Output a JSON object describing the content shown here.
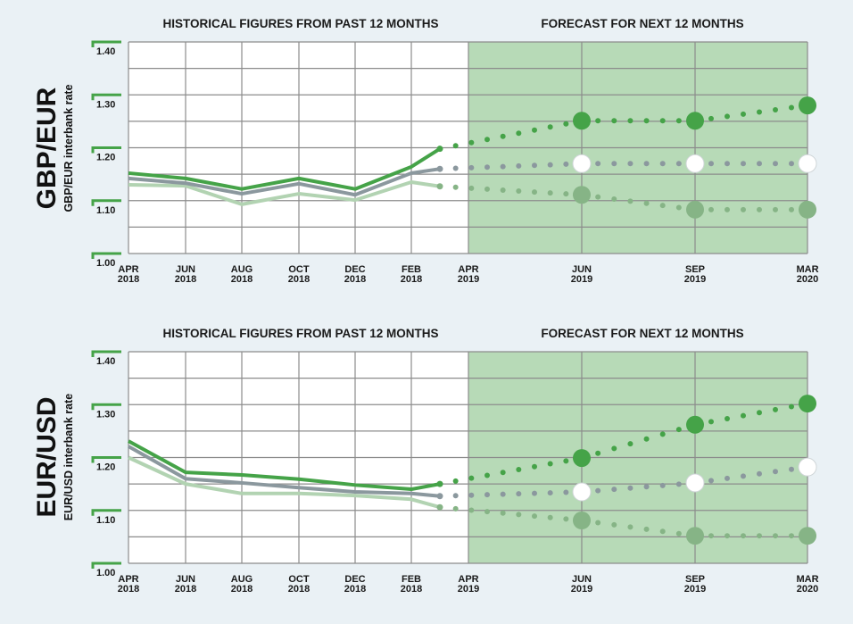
{
  "colors": {
    "background": "#eaf1f5",
    "forecast_fill": "#b7dab7",
    "grid": "#8c8c8c",
    "high": "#45a348",
    "mid": "#8b989e",
    "low": "#b2d3b2",
    "low_marker": "#86b486",
    "tick_accent": "#45a348"
  },
  "chart_data": [
    {
      "type": "line",
      "title": "GBP/EUR",
      "ylabel": "GBP/EUR interbank rate",
      "section_titles": {
        "historical": "HISTORICAL FIGURES FROM PAST 12 MONTHS",
        "forecast": "FORECAST FOR NEXT 12 MONTHS"
      },
      "ylim": [
        1.0,
        1.4
      ],
      "yticks": [
        "1.40",
        "1.30",
        "1.20",
        "1.10",
        "1.00"
      ],
      "xticks": [
        {
          "month": "APR",
          "year": "2018"
        },
        {
          "month": "JUN",
          "year": "2018"
        },
        {
          "month": "AUG",
          "year": "2018"
        },
        {
          "month": "OCT",
          "year": "2018"
        },
        {
          "month": "DEC",
          "year": "2018"
        },
        {
          "month": "FEB",
          "year": "2018"
        },
        {
          "month": "APR",
          "year": "2019"
        },
        {
          "month": "JUN",
          "year": "2019"
        },
        {
          "month": "SEP",
          "year": "2019"
        },
        {
          "month": "MAR",
          "year": "2020"
        }
      ],
      "grid": true,
      "historical": {
        "x": [
          "APR 2018",
          "JUN 2018",
          "AUG 2018",
          "OCT 2018",
          "DEC 2018",
          "FEB 2018",
          "MAR 2019"
        ],
        "series": [
          {
            "name": "high",
            "values": [
              1.152,
              1.142,
              1.122,
              1.142,
              1.122,
              1.164,
              1.198
            ]
          },
          {
            "name": "mid",
            "values": [
              1.142,
              1.133,
              1.113,
              1.132,
              1.111,
              1.152,
              1.16
            ]
          },
          {
            "name": "low",
            "values": [
              1.13,
              1.128,
              1.093,
              1.113,
              1.101,
              1.135,
              1.127
            ]
          }
        ]
      },
      "forecast": {
        "x": [
          "JUN 2019",
          "SEP 2019",
          "MAR 2020"
        ],
        "series": [
          {
            "name": "high",
            "values": [
              1.251,
              1.251,
              1.28
            ]
          },
          {
            "name": "mid",
            "values": [
              1.17,
              1.17,
              1.17
            ]
          },
          {
            "name": "low",
            "values": [
              1.111,
              1.083,
              1.083
            ]
          }
        ]
      }
    },
    {
      "type": "line",
      "title": "EUR/USD",
      "ylabel": "EUR/USD interbank rate",
      "section_titles": {
        "historical": "HISTORICAL FIGURES FROM PAST 12 MONTHS",
        "forecast": "FORECAST FOR NEXT 12 MONTHS"
      },
      "ylim": [
        1.0,
        1.4
      ],
      "yticks": [
        "1.40",
        "1.30",
        "1.20",
        "1.10",
        "1.00"
      ],
      "xticks": [
        {
          "month": "APR",
          "year": "2018"
        },
        {
          "month": "JUN",
          "year": "2018"
        },
        {
          "month": "AUG",
          "year": "2018"
        },
        {
          "month": "OCT",
          "year": "2018"
        },
        {
          "month": "DEC",
          "year": "2018"
        },
        {
          "month": "FEB",
          "year": "2018"
        },
        {
          "month": "APR",
          "year": "2019"
        },
        {
          "month": "JUN",
          "year": "2019"
        },
        {
          "month": "SEP",
          "year": "2019"
        },
        {
          "month": "MAR",
          "year": "2020"
        }
      ],
      "grid": true,
      "historical": {
        "x": [
          "APR 2018",
          "JUN 2018",
          "AUG 2018",
          "OCT 2018",
          "DEC 2018",
          "FEB 2018",
          "MAR 2019"
        ],
        "series": [
          {
            "name": "high",
            "values": [
              1.231,
              1.172,
              1.167,
              1.159,
              1.148,
              1.14,
              1.15
            ]
          },
          {
            "name": "mid",
            "values": [
              1.221,
              1.16,
              1.152,
              1.143,
              1.135,
              1.132,
              1.127
            ]
          },
          {
            "name": "low",
            "values": [
              1.2,
              1.15,
              1.132,
              1.132,
              1.128,
              1.121,
              1.106
            ]
          }
        ]
      },
      "forecast": {
        "x": [
          "JUN 2019",
          "SEP 2019",
          "MAR 2020"
        ],
        "series": [
          {
            "name": "high",
            "values": [
              1.199,
              1.262,
              1.302
            ]
          },
          {
            "name": "mid",
            "values": [
              1.135,
              1.152,
              1.182
            ]
          },
          {
            "name": "low",
            "values": [
              1.081,
              1.052,
              1.052
            ]
          }
        ]
      }
    }
  ]
}
